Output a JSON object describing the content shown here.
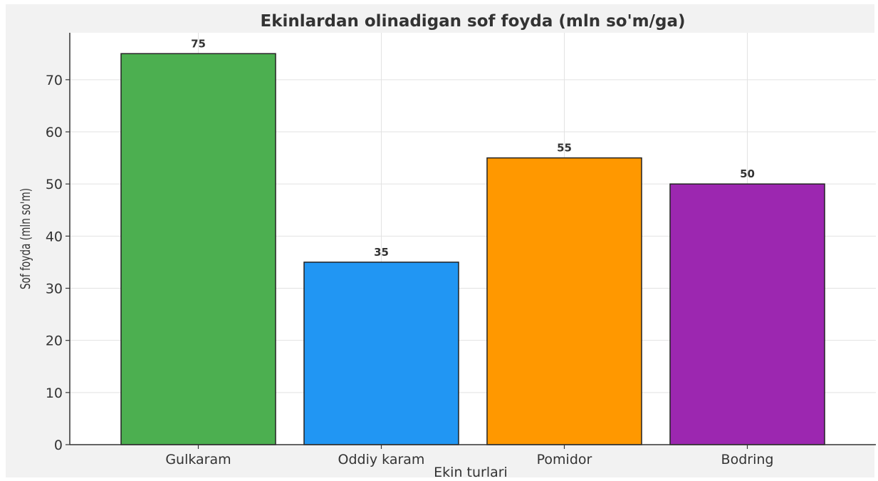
{
  "chart_data": {
    "type": "bar",
    "title": "Ekinlardan olinadigan sof foyda (mln so'm/ga)",
    "xlabel": "Ekin turlari",
    "ylabel": "Sof foyda (mln so'm)",
    "categories": [
      "Gulkaram",
      "Oddiy karam",
      "Pomidor",
      "Bodring"
    ],
    "values": [
      75,
      35,
      55,
      50
    ],
    "value_labels": [
      "75",
      "35",
      "55",
      "50"
    ],
    "colors": [
      "#4caf50",
      "#2196f3",
      "#ff9800",
      "#9c27b0"
    ],
    "ylim": [
      0,
      79
    ],
    "yticks": [
      0,
      10,
      20,
      30,
      40,
      50,
      60,
      70
    ],
    "ytick_labels": [
      "0",
      "10",
      "20",
      "30",
      "40",
      "50",
      "60",
      "70"
    ],
    "grid": true,
    "legend": false
  }
}
